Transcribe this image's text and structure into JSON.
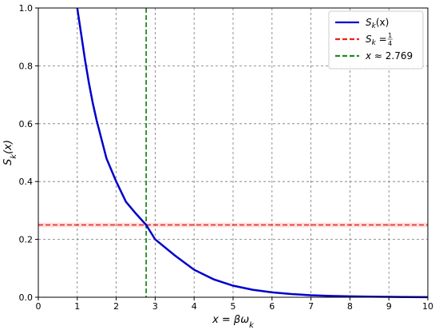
{
  "chart_data": {
    "type": "line",
    "xlabel": "x = βω",
    "xlabel_sub": "k",
    "ylabel": "S",
    "ylabel_sub": "k",
    "ylabel_suffix": "(x)",
    "xlim": [
      0,
      10
    ],
    "ylim": [
      0,
      1.0
    ],
    "xticks": [
      "0",
      "1",
      "2",
      "3",
      "4",
      "5",
      "6",
      "7",
      "8",
      "9",
      "10"
    ],
    "yticks": [
      "0.0",
      "0.2",
      "0.4",
      "0.6",
      "0.8",
      "1.0"
    ],
    "grid": true,
    "legend_position": "top-right",
    "series": [
      {
        "name": "S_k(x)",
        "color": "#0000cc",
        "style": "solid",
        "x": [
          1.0,
          1.1,
          1.2,
          1.3,
          1.4,
          1.5,
          1.75,
          2.0,
          2.25,
          2.5,
          2.769,
          3.0,
          3.5,
          4.0,
          4.5,
          5.0,
          5.5,
          6.0,
          6.5,
          7.0,
          7.5,
          8.0,
          8.5,
          9.0,
          9.5,
          10.0
        ],
        "values": [
          1.0,
          0.91,
          0.82,
          0.74,
          0.67,
          0.61,
          0.48,
          0.4,
          0.33,
          0.29,
          0.25,
          0.2,
          0.145,
          0.095,
          0.062,
          0.04,
          0.026,
          0.017,
          0.011,
          0.007,
          0.0045,
          0.003,
          0.002,
          0.0013,
          0.0008,
          0.0005
        ]
      }
    ],
    "reference_lines": [
      {
        "orientation": "horizontal",
        "value": 0.25,
        "color": "#e8231a",
        "style": "dashed",
        "band": 0.008
      },
      {
        "orientation": "vertical",
        "value": 2.769,
        "color": "#1f8a1f",
        "style": "dashed"
      }
    ],
    "legend": [
      {
        "sym": "S",
        "sub": "k",
        "rest": "(x)",
        "color": "#0000cc"
      },
      {
        "sym": "S",
        "sub": "k",
        "rest": " = ",
        "frac_num": "1",
        "frac_den": "4",
        "color": "#e8231a"
      },
      {
        "sym": "x",
        "sub": "",
        "rest": " ≈ 2.769",
        "color": "#1f8a1f"
      }
    ]
  }
}
